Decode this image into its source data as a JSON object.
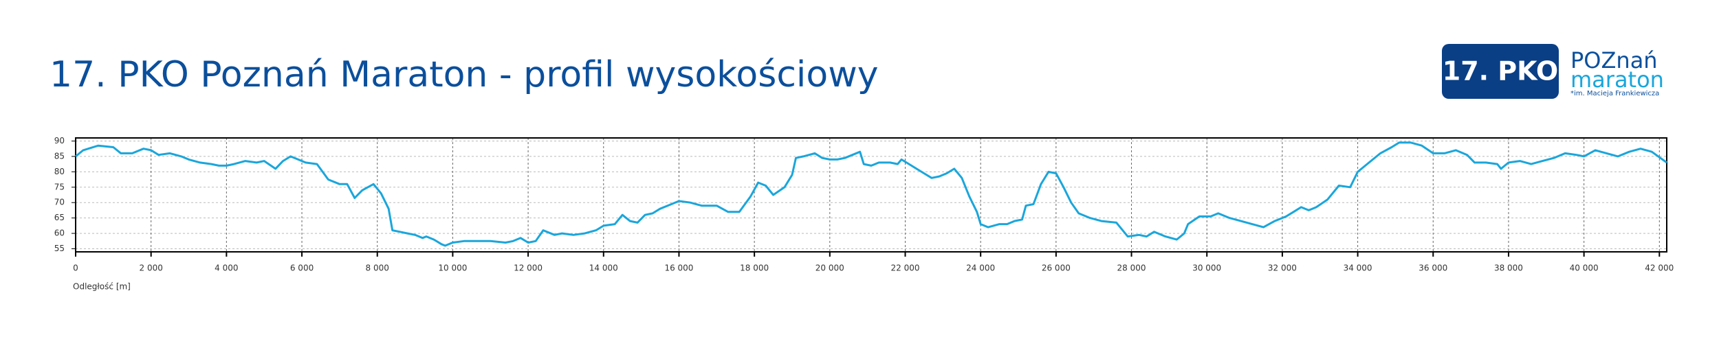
{
  "chart_data": {
    "type": "line",
    "title": "17. PKO Poznań Maraton - profil wysokościowy",
    "x_label": "Odległość [m]",
    "xlim": [
      0,
      42195
    ],
    "ylim": [
      54,
      91
    ],
    "xticks": [
      0,
      {
        "value": 2000,
        "label": "2 000"
      },
      {
        "value": 4000,
        "label": "4 000"
      },
      {
        "value": 6000,
        "label": "6 000"
      },
      {
        "value": 8000,
        "label": "8 000"
      },
      {
        "value": 10000,
        "label": "10 000"
      },
      {
        "value": 12000,
        "label": "12 000"
      },
      {
        "value": 14000,
        "label": "14 000"
      },
      {
        "value": 16000,
        "label": "16 000"
      },
      {
        "value": 18000,
        "label": "18 000"
      },
      {
        "value": 20000,
        "label": "20 000"
      },
      {
        "value": 22000,
        "label": "22 000"
      },
      {
        "value": 24000,
        "label": "24 000"
      },
      {
        "value": 26000,
        "label": "26 000"
      },
      {
        "value": 28000,
        "label": "28 000"
      },
      {
        "value": 30000,
        "label": "30 000"
      },
      {
        "value": 32000,
        "label": "32 000"
      },
      {
        "value": 34000,
        "label": "34 000"
      },
      {
        "value": 36000,
        "label": "36 000"
      },
      {
        "value": 38000,
        "label": "38 000"
      },
      {
        "value": 40000,
        "label": "40 000"
      },
      {
        "value": 42000,
        "label": "42 000"
      }
    ],
    "yticks": [
      55,
      60,
      65,
      70,
      75,
      80,
      85,
      90
    ],
    "grid": true,
    "color": "#1aa6db",
    "x": [
      0,
      200,
      600,
      1000,
      1200,
      1500,
      1800,
      2000,
      2200,
      2500,
      2800,
      3000,
      3300,
      3600,
      3800,
      4000,
      4200,
      4500,
      4800,
      5000,
      5300,
      5500,
      5700,
      5900,
      6100,
      6400,
      6700,
      7000,
      7200,
      7400,
      7600,
      7900,
      8100,
      8300,
      8400,
      8600,
      8800,
      9000,
      9200,
      9300,
      9500,
      9700,
      9800,
      10000,
      10300,
      10600,
      11000,
      11400,
      11600,
      11800,
      12000,
      12200,
      12400,
      12700,
      12900,
      13200,
      13500,
      13800,
      14000,
      14300,
      14500,
      14700,
      14900,
      15100,
      15300,
      15500,
      15800,
      16000,
      16300,
      16600,
      17000,
      17300,
      17600,
      17900,
      18100,
      18300,
      18500,
      18800,
      19000,
      19100,
      19300,
      19600,
      19800,
      20000,
      20200,
      20400,
      20600,
      20800,
      20900,
      21100,
      21300,
      21600,
      21800,
      21900,
      22100,
      22300,
      22500,
      22700,
      22900,
      23100,
      23300,
      23500,
      23700,
      23900,
      24000,
      24200,
      24500,
      24700,
      24900,
      25100,
      25200,
      25400,
      25600,
      25800,
      26000,
      26200,
      26400,
      26600,
      26900,
      27200,
      27600,
      27900,
      28200,
      28400,
      28600,
      28900,
      29200,
      29400,
      29500,
      29800,
      30100,
      30300,
      30600,
      30900,
      31200,
      31500,
      31800,
      32100,
      32300,
      32500,
      32700,
      32900,
      33200,
      33500,
      33800,
      34000,
      34300,
      34600,
      34900,
      35100,
      35400,
      35700,
      36000,
      36300,
      36600,
      36900,
      37100,
      37400,
      37700,
      37800,
      38000,
      38300,
      38600,
      38900,
      39200,
      39500,
      39800,
      40000,
      40300,
      40600,
      40900,
      41200,
      41500,
      41800,
      42195
    ],
    "values": [
      85,
      87,
      88.5,
      88,
      86,
      86,
      87.5,
      87,
      85.5,
      86,
      85,
      84,
      83,
      82.5,
      82,
      82,
      82.5,
      83.5,
      83,
      83.5,
      81,
      83.5,
      85,
      84,
      83,
      82.5,
      77.5,
      76,
      76,
      71.5,
      74,
      76,
      73,
      68,
      61,
      60.5,
      60,
      59.5,
      58.5,
      59,
      58,
      56.5,
      56,
      57,
      57.5,
      57.5,
      57.5,
      57,
      57.5,
      58.5,
      57,
      57.5,
      61,
      59.5,
      60,
      59.5,
      60,
      61,
      62.5,
      63,
      66,
      64,
      63.5,
      66,
      66.5,
      68,
      69.5,
      70.5,
      70,
      69,
      69,
      67,
      67,
      72,
      76.5,
      75.5,
      72.5,
      75,
      79,
      84.5,
      85,
      86,
      84.5,
      84,
      84,
      84.5,
      85.5,
      86.5,
      82.5,
      82,
      83,
      83,
      82.5,
      84,
      82.5,
      81,
      79.5,
      78,
      78.5,
      79.5,
      81,
      78,
      72,
      67,
      63,
      62,
      63,
      63,
      64,
      64.5,
      69,
      69.5,
      76,
      80,
      79.5,
      75,
      70,
      66.5,
      65,
      64,
      63.5,
      59,
      59.5,
      59,
      60.5,
      59,
      58,
      60,
      63,
      65.5,
      65.5,
      66.5,
      65,
      64,
      63,
      62,
      64,
      65.5,
      67,
      68.5,
      67.5,
      68.5,
      71,
      75.5,
      75,
      80,
      83,
      86,
      88,
      89.5,
      89.5,
      88.5,
      86,
      86,
      87,
      85.5,
      83,
      83,
      82.5,
      81,
      83,
      83.5,
      82.5,
      83.5,
      84.5,
      86,
      85.5,
      85,
      87,
      86,
      85,
      86.5,
      87.5,
      86.5,
      83
    ]
  },
  "logo": {
    "badge": "17. PKO",
    "city": "POZnań",
    "event": "maraton",
    "patron": "*im. Macieja Frankiewicza"
  }
}
